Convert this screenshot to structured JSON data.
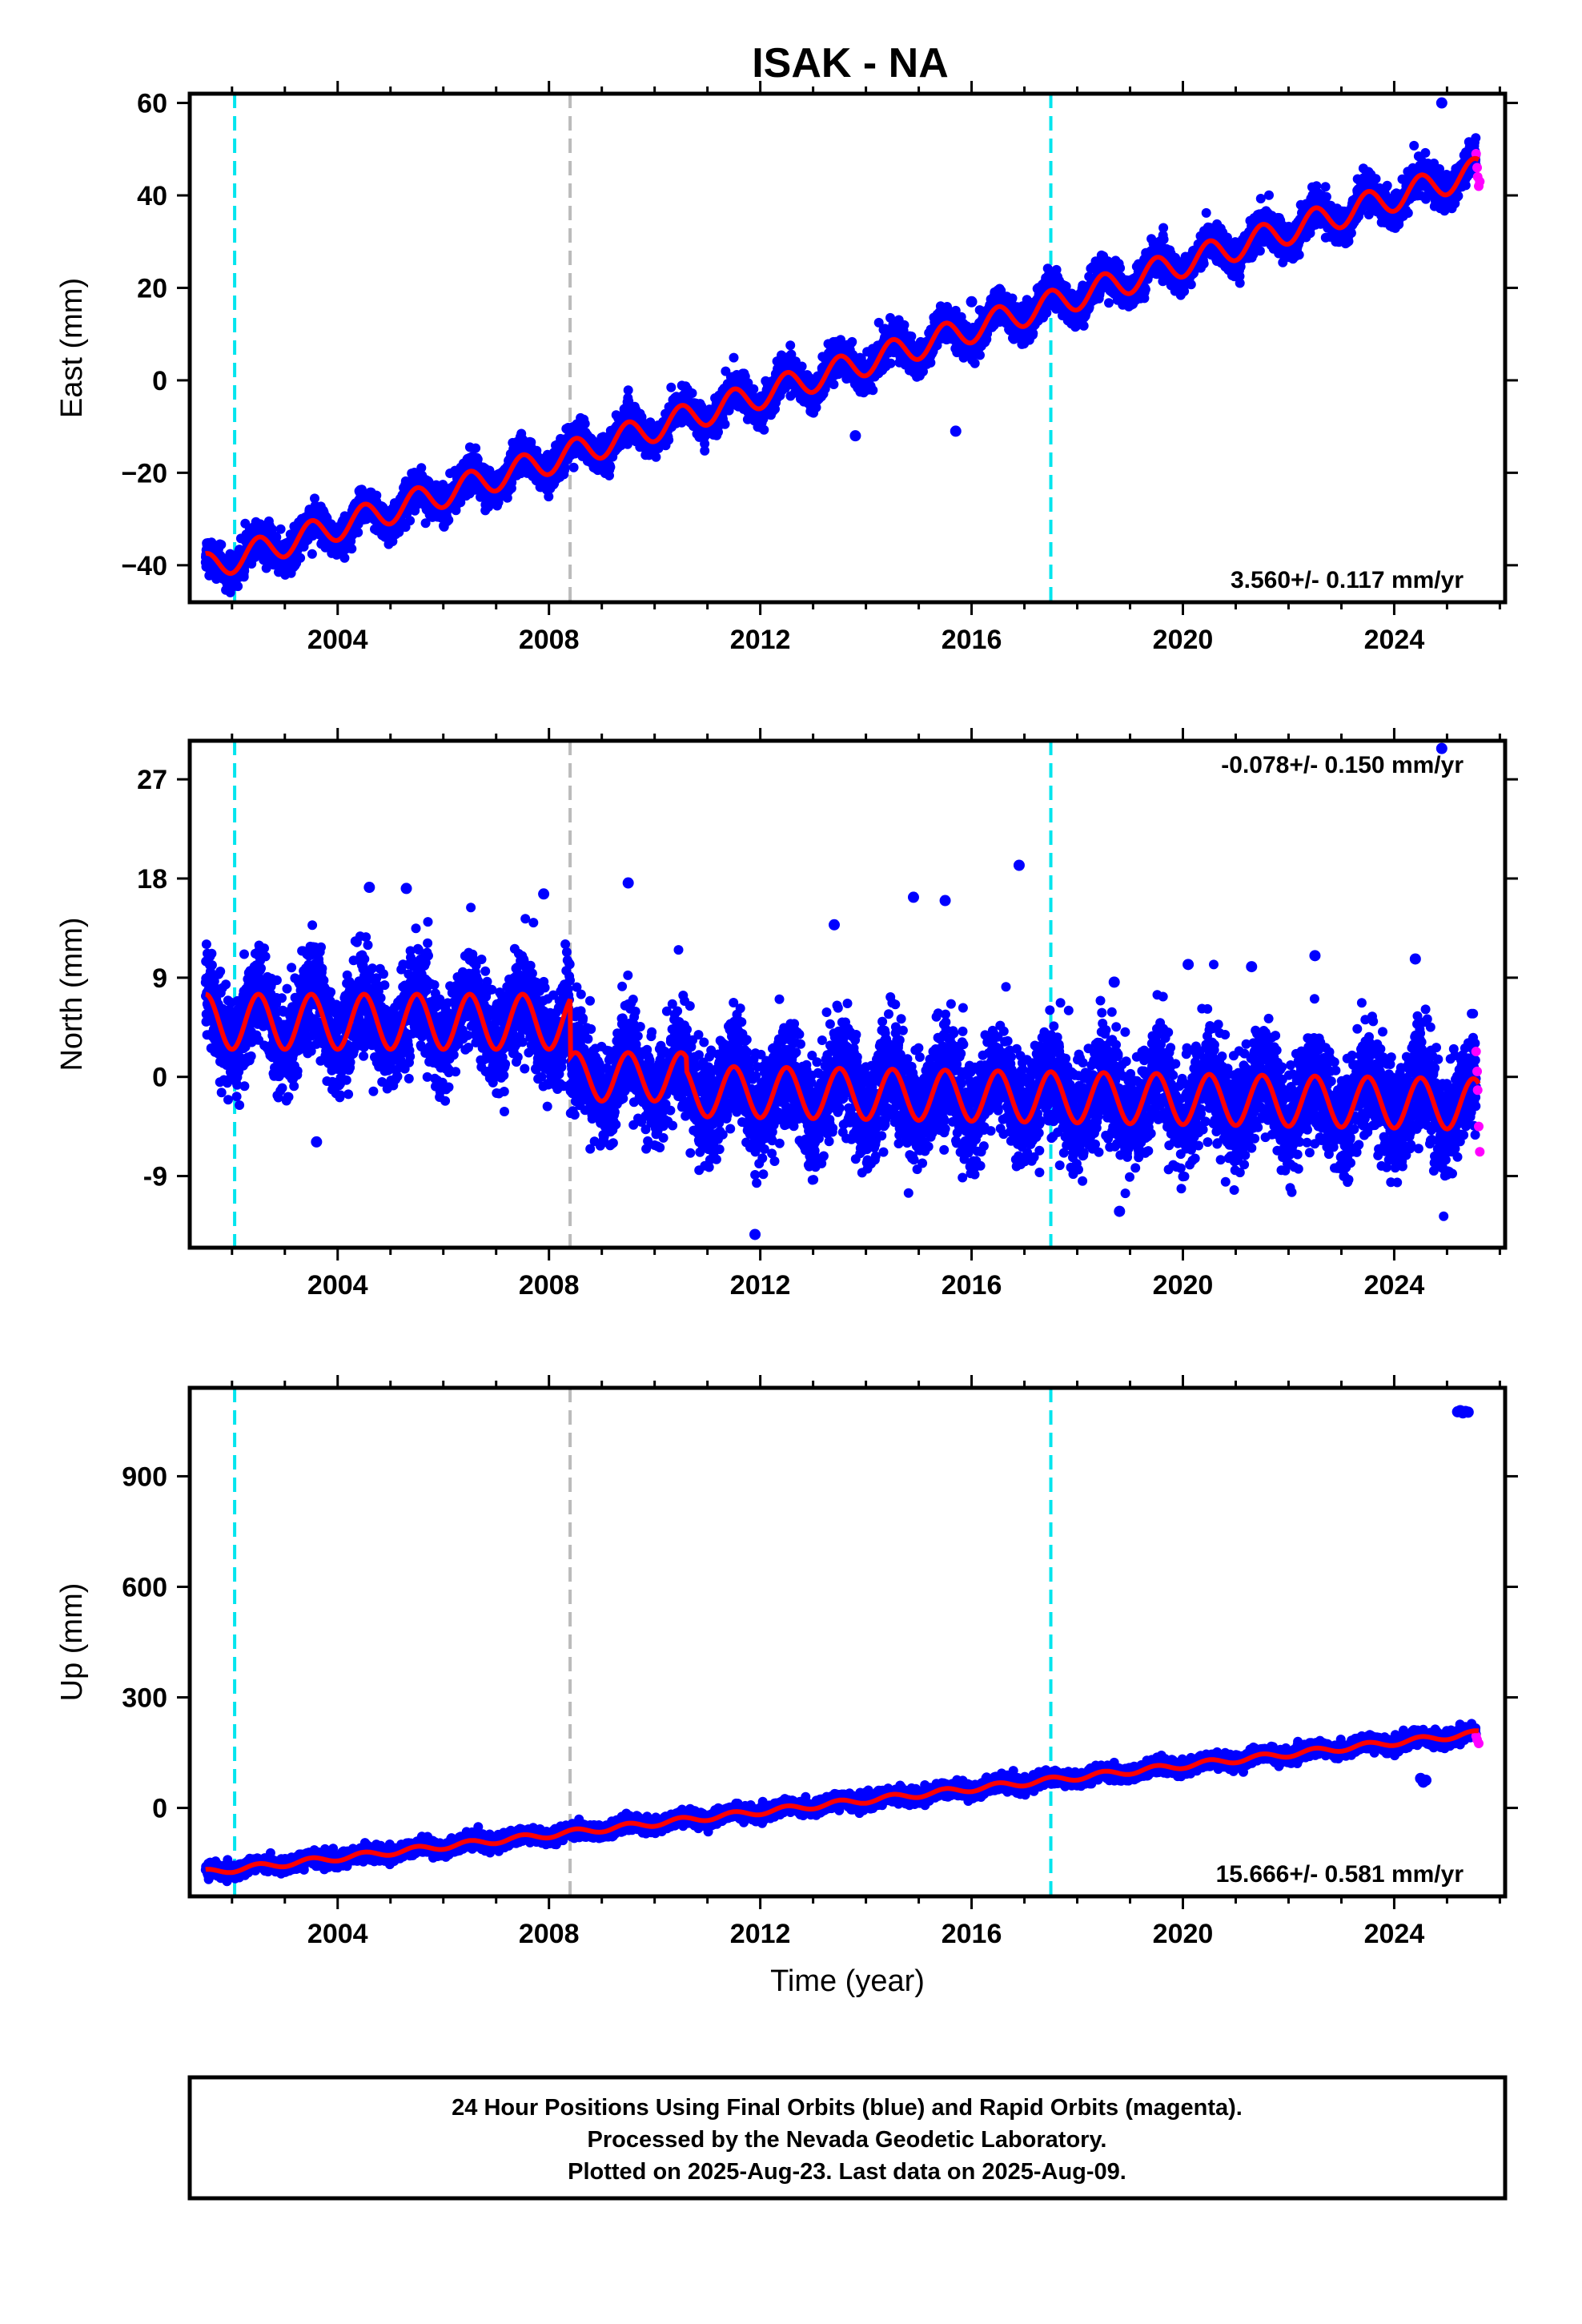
{
  "title": "ISAK - NA",
  "colors": {
    "final_points": "#0000ff",
    "rapid_points": "#ff00ff",
    "model_line": "#ff0000",
    "event_cyan": "#00e5ee",
    "event_gray": "#bbbbbb"
  },
  "footer": {
    "line1": "24 Hour Positions Using Final Orbits (blue) and Rapid Orbits (magenta).",
    "line2": "Processed by the Nevada Geodetic Laboratory.",
    "line3": "Plotted on 2025-Aug-23. Last data on 2025-Aug-09."
  },
  "chart_data": [
    {
      "type": "scatter",
      "ylabel": "East (mm)",
      "xlabel": "",
      "xlim": [
        2001.2,
        2026.1
      ],
      "ylim": [
        -48,
        62
      ],
      "xticks": [
        2004,
        2008,
        2012,
        2016,
        2020,
        2024
      ],
      "yticks": [
        -40,
        -20,
        0,
        20,
        40,
        60
      ],
      "ytick_labels": [
        "−40",
        "−20",
        "0",
        "20",
        "40",
        "60"
      ],
      "rate_label": "3.560+/- 0.117 mm/yr",
      "rate_position": "bottom-right",
      "trend": {
        "start_x": 2001.5,
        "start_y": -40.5,
        "rate": 3.56
      },
      "seasonal_amplitude": 3.0,
      "scatter_sd": 1.8,
      "events": [
        {
          "x": 2002.05,
          "kind": "cyan"
        },
        {
          "x": 2008.4,
          "kind": "gray"
        },
        {
          "x": 2017.5,
          "kind": "cyan"
        }
      ],
      "outliers": [
        {
          "x": 2024.9,
          "y": 60
        },
        {
          "x": 2016.0,
          "y": 17
        },
        {
          "x": 2013.8,
          "y": -12
        },
        {
          "x": 2015.7,
          "y": -11
        }
      ],
      "rapid_points": [
        {
          "x": 2025.55,
          "y": 49
        },
        {
          "x": 2025.57,
          "y": 46
        },
        {
          "x": 2025.58,
          "y": 44
        },
        {
          "x": 2025.6,
          "y": 42
        },
        {
          "x": 2025.62,
          "y": 43
        }
      ]
    },
    {
      "type": "scatter",
      "ylabel": "North (mm)",
      "xlabel": "",
      "xlim": [
        2001.2,
        2026.1
      ],
      "ylim": [
        -15.5,
        30.5
      ],
      "xticks": [
        2004,
        2008,
        2012,
        2016,
        2020,
        2024
      ],
      "yticks": [
        -9,
        0,
        9,
        18,
        27
      ],
      "ytick_labels": [
        "-9",
        "0",
        "9",
        "18",
        "27"
      ],
      "rate_label": "-0.078+/- 0.150 mm/yr",
      "rate_position": "top-right",
      "segments": [
        {
          "start": 2001.5,
          "end": 2008.4,
          "level": 5.0,
          "rate": 0.0,
          "amplitude": 2.5,
          "sd": 2.2
        },
        {
          "start": 2008.4,
          "end": 2010.6,
          "level": 0.0,
          "rate": 0.0,
          "amplitude": 2.2,
          "sd": 2.2
        },
        {
          "start": 2010.6,
          "end": 2025.65,
          "level": -1.3,
          "rate": -0.078,
          "amplitude": 2.3,
          "sd": 2.4
        }
      ],
      "events": [
        {
          "x": 2002.05,
          "kind": "cyan"
        },
        {
          "x": 2008.4,
          "kind": "gray"
        },
        {
          "x": 2017.5,
          "kind": "cyan"
        }
      ],
      "outliers": [
        {
          "x": 2016.9,
          "y": 19.2
        },
        {
          "x": 2009.5,
          "y": 17.6
        },
        {
          "x": 2004.6,
          "y": 17.2
        },
        {
          "x": 2005.3,
          "y": 17.1
        },
        {
          "x": 2007.9,
          "y": 16.6
        },
        {
          "x": 2014.9,
          "y": 16.3
        },
        {
          "x": 2015.5,
          "y": 16.0
        },
        {
          "x": 2013.4,
          "y": 13.8
        },
        {
          "x": 2003.6,
          "y": -5.9
        },
        {
          "x": 2011.9,
          "y": -14.3
        },
        {
          "x": 2018.8,
          "y": -12.2
        },
        {
          "x": 2024.9,
          "y": 29.8
        },
        {
          "x": 2022.5,
          "y": 11.0
        },
        {
          "x": 2020.1,
          "y": 10.2
        },
        {
          "x": 2021.3,
          "y": 10.0
        },
        {
          "x": 2024.4,
          "y": 10.7
        },
        {
          "x": 2018.7,
          "y": 8.6
        }
      ],
      "rapid_points": [
        {
          "x": 2025.55,
          "y": 2.3
        },
        {
          "x": 2025.57,
          "y": 0.5
        },
        {
          "x": 2025.58,
          "y": -1.2
        },
        {
          "x": 2025.6,
          "y": -4.5
        },
        {
          "x": 2025.62,
          "y": -6.8
        }
      ]
    },
    {
      "type": "scatter",
      "ylabel": "Up (mm)",
      "xlabel": "Time (year)",
      "xlim": [
        2001.2,
        2026.1
      ],
      "ylim": [
        -240,
        1140
      ],
      "xticks": [
        2004,
        2008,
        2012,
        2016,
        2020,
        2024
      ],
      "yticks": [
        0,
        300,
        600,
        900
      ],
      "ytick_labels": [
        "0",
        "300",
        "600",
        "900"
      ],
      "rate_label": "15.666+/- 0.581 mm/yr",
      "rate_position": "bottom-right",
      "trend": {
        "start_x": 2001.5,
        "start_y": -175,
        "rate": 15.666
      },
      "seasonal_amplitude": 8,
      "scatter_sd": 9,
      "events": [
        {
          "x": 2002.05,
          "kind": "cyan"
        },
        {
          "x": 2008.4,
          "kind": "gray"
        },
        {
          "x": 2017.5,
          "kind": "cyan"
        }
      ],
      "outliers": [
        {
          "x": 2025.2,
          "y": 1075
        },
        {
          "x": 2025.25,
          "y": 1078
        },
        {
          "x": 2025.3,
          "y": 1072
        },
        {
          "x": 2025.35,
          "y": 1076
        },
        {
          "x": 2025.4,
          "y": 1074
        },
        {
          "x": 2024.5,
          "y": 80
        },
        {
          "x": 2024.55,
          "y": 70
        },
        {
          "x": 2024.6,
          "y": 75
        },
        {
          "x": 2014.0,
          "y": 40
        }
      ],
      "rapid_points": [
        {
          "x": 2025.55,
          "y": 195
        },
        {
          "x": 2025.57,
          "y": 185
        },
        {
          "x": 2025.6,
          "y": 175
        }
      ]
    }
  ]
}
